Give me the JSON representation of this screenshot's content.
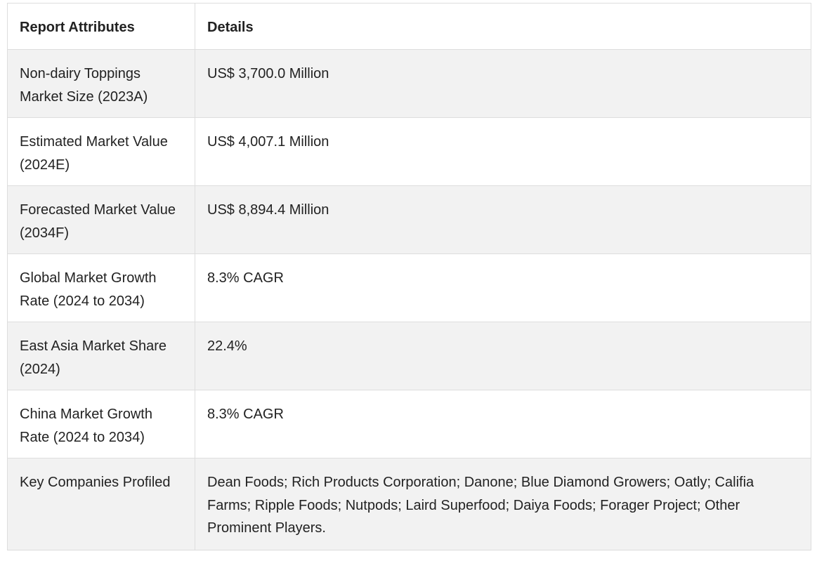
{
  "table": {
    "headers": [
      "Report Attributes",
      "Details"
    ],
    "rows": [
      {
        "attribute": "Non-dairy Toppings Market Size (2023A)",
        "details": "US$ 3,700.0 Million"
      },
      {
        "attribute": "Estimated Market Value (2024E)",
        "details": "US$ 4,007.1 Million"
      },
      {
        "attribute": "Forecasted Market Value (2034F)",
        "details": "US$ 8,894.4 Million"
      },
      {
        "attribute": "Global Market Growth Rate (2024 to 2034)",
        "details": "8.3% CAGR"
      },
      {
        "attribute": "East Asia Market Share (2024)",
        "details": "22.4%"
      },
      {
        "attribute": "China Market Growth Rate (2024 to 2034)",
        "details": "8.3% CAGR"
      },
      {
        "attribute": "Key Companies Profiled",
        "details": "Dean Foods; Rich Products Corporation; Danone; Blue Diamond Growers; Oatly; Califia Farms; Ripple Foods; Nutpods; Laird Superfood; Daiya Foods; Forager Project; Other Prominent Players."
      }
    ]
  }
}
